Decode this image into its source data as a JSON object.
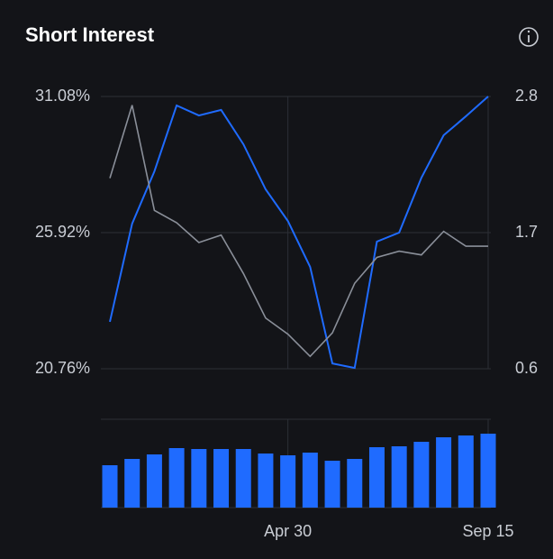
{
  "chart_data": [
    {
      "type": "line",
      "title": "Short Interest",
      "categories": [
        null,
        null,
        null,
        null,
        null,
        null,
        null,
        null,
        "Apr 30",
        null,
        null,
        null,
        null,
        null,
        null,
        null,
        null,
        "Sep 15"
      ],
      "series": [
        {
          "color": "#1f6bff",
          "values": [
            22.54,
            26.26,
            28.24,
            30.74,
            30.36,
            30.57,
            29.27,
            27.56,
            26.36,
            24.62,
            20.96,
            20.79,
            25.58,
            25.92,
            28.0,
            29.61,
            30.33,
            31.08
          ]
        },
        {
          "color": "#8a8f99",
          "axis": "y2",
          "values": [
            2.14,
            2.73,
            1.88,
            1.78,
            1.62,
            1.68,
            1.37,
            1.01,
            0.88,
            0.7,
            0.89,
            1.29,
            1.5,
            1.55,
            1.52,
            1.71,
            1.59,
            1.59
          ]
        }
      ],
      "ylim": [
        20.76,
        31.08
      ],
      "yticks": [
        {
          "value": 31.08,
          "label": "31.08%"
        },
        {
          "value": 25.92,
          "label": "25.92%"
        },
        {
          "value": 20.76,
          "label": "20.76%"
        }
      ],
      "y2lim": [
        0.6,
        2.8
      ],
      "y2ticks": [
        2.8,
        1.7,
        0.6
      ],
      "grid": true
    },
    {
      "type": "bar",
      "categories": [
        null,
        null,
        null,
        null,
        null,
        null,
        null,
        null,
        "Apr 30",
        null,
        null,
        null,
        null,
        null,
        null,
        null,
        null,
        "Sep 15"
      ],
      "color": "#1f6bff",
      "values": [
        47,
        54,
        59,
        66,
        65,
        65,
        65,
        60,
        58,
        61,
        52,
        54,
        67,
        68,
        73,
        78,
        80,
        82
      ],
      "ylim": [
        0,
        98
      ],
      "grid": true
    }
  ]
}
